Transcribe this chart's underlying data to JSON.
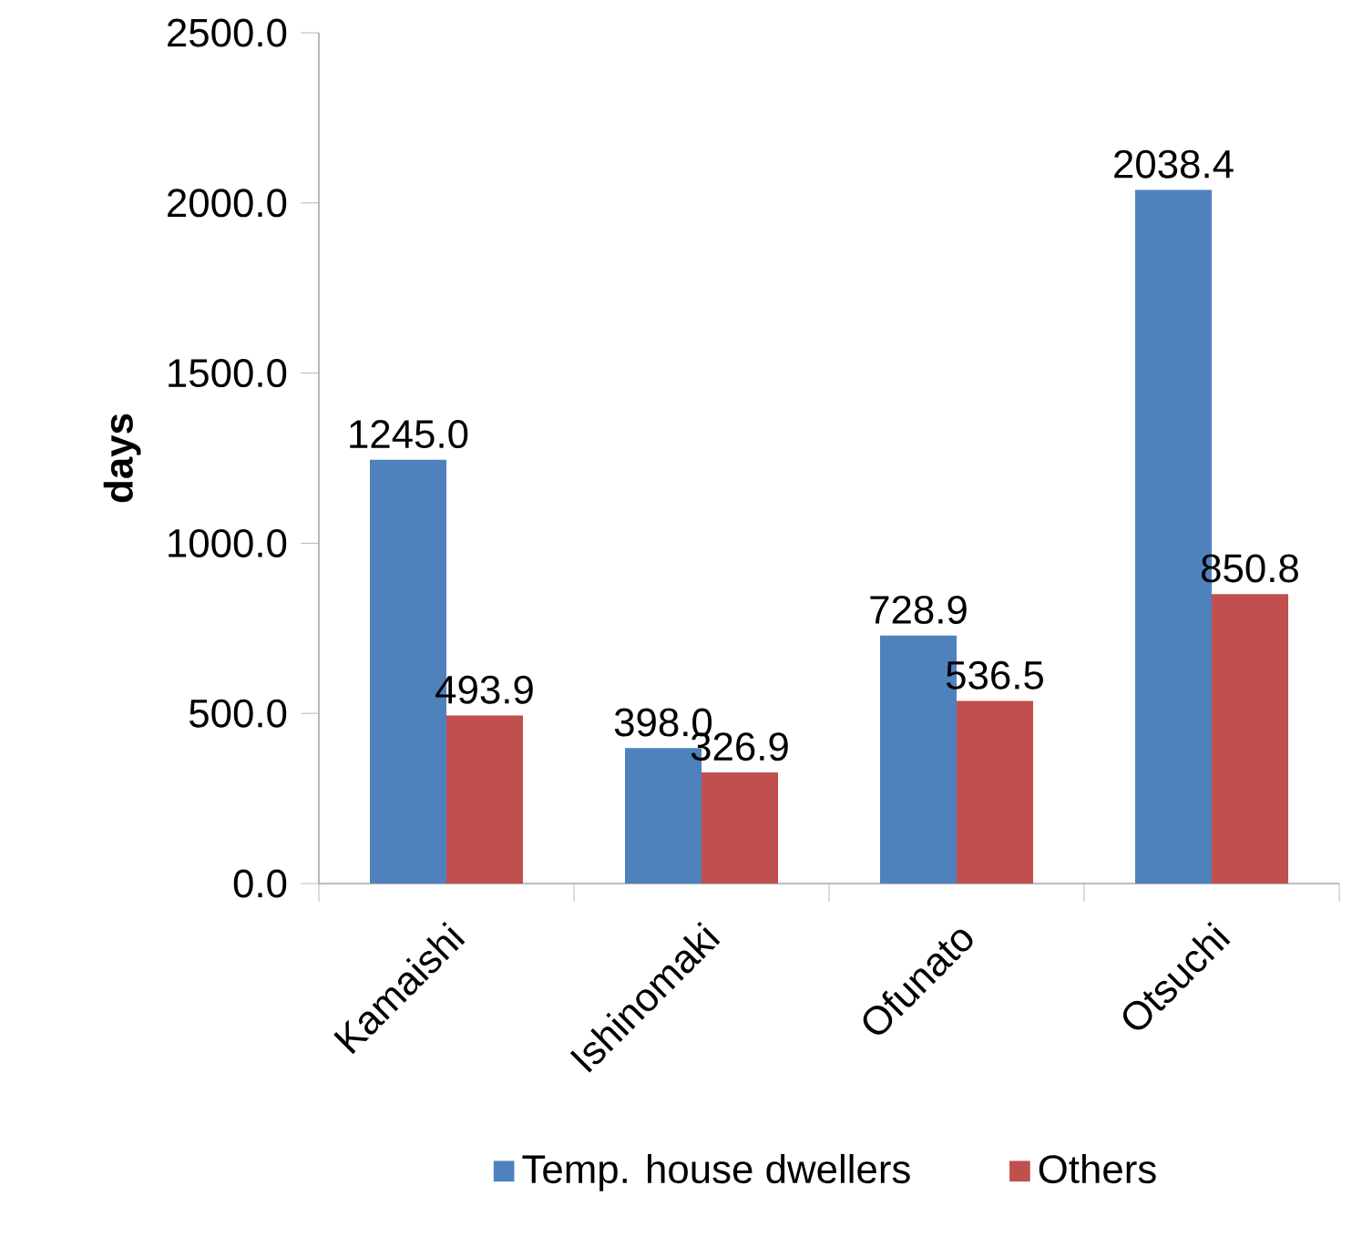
{
  "chart_data": {
    "type": "bar",
    "ylabel": "**days**",
    "categories": [
      "Kamaishi",
      "Ishinomaki",
      "Ofunato",
      "Otsuchi"
    ],
    "series": [
      {
        "name": "Temp. house dwellers",
        "color": "#4f81bd",
        "values": [
          1245.0,
          398.0,
          728.9,
          2038.4
        ],
        "value_labels": [
          "1245.0",
          "398.0",
          "728.9",
          "2038.4"
        ]
      },
      {
        "name": "Others",
        "color": "#c0504d",
        "values": [
          493.9,
          326.9,
          536.5,
          850.8
        ],
        "value_labels": [
          "493.9",
          "326.9",
          "536.5",
          "850.8"
        ]
      }
    ],
    "ylim": [
      0,
      2500
    ],
    "yticks": [
      {
        "value": 0,
        "label": "0.0"
      },
      {
        "value": 500,
        "label": "500.0"
      },
      {
        "value": 1000,
        "label": "1000.0"
      },
      {
        "value": 1500,
        "label": "1500.0"
      },
      {
        "value": 2000,
        "label": "2000.0"
      },
      {
        "value": 2500,
        "label": "2500.0"
      }
    ],
    "grid": false,
    "legend": "bottom"
  }
}
